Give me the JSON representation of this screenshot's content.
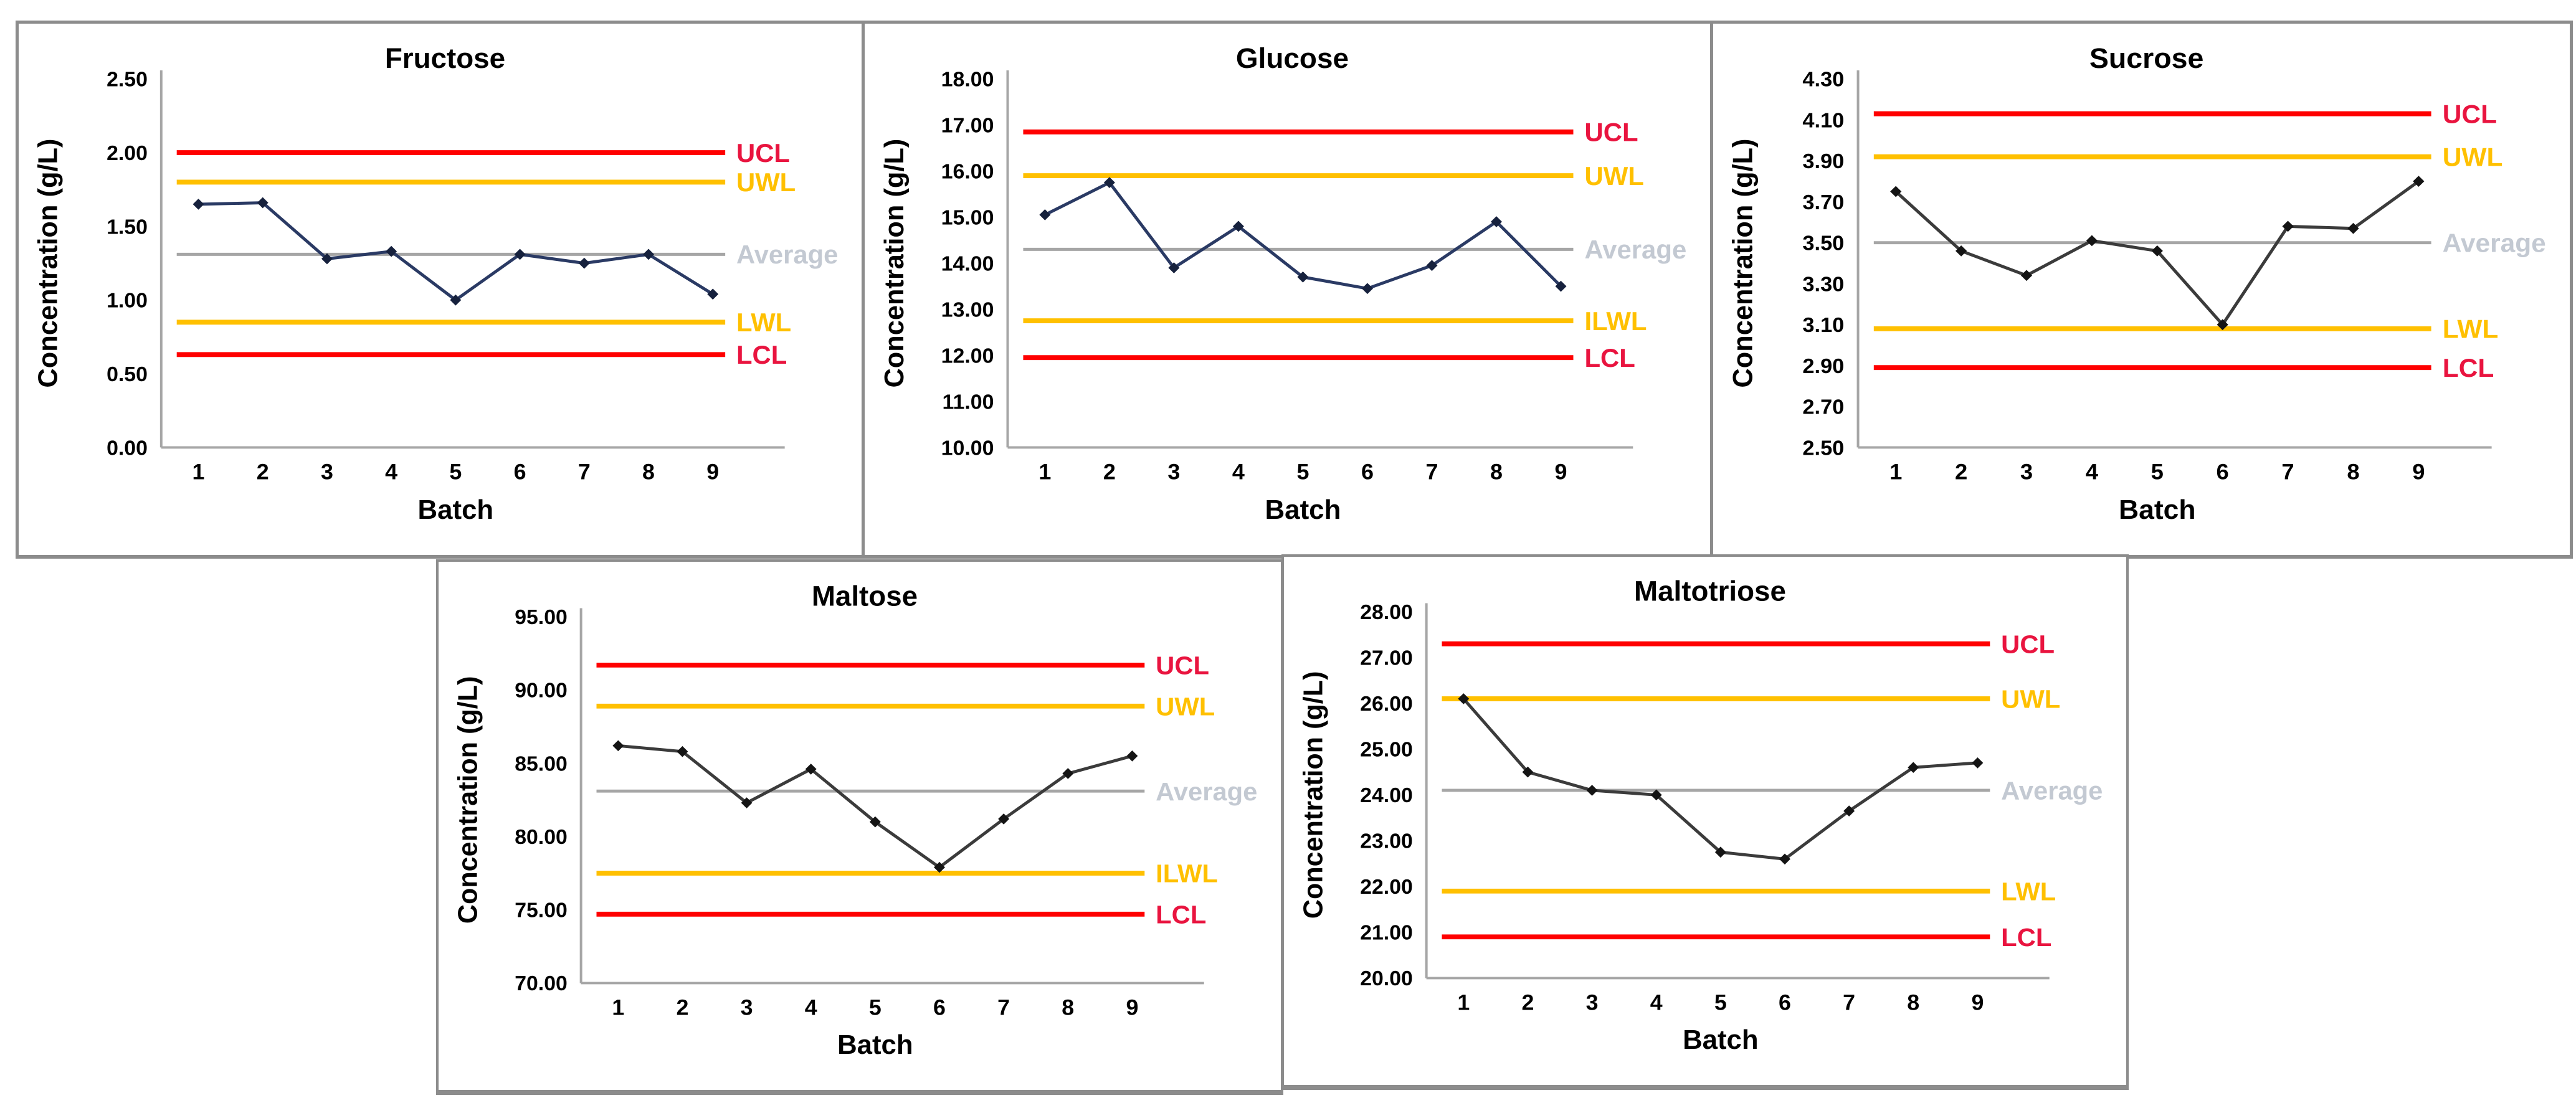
{
  "page": {
    "background": "#FFFFFF",
    "border_color": "#8C8C8C"
  },
  "colors": {
    "axis_line": "#A6A6A6",
    "tick_text": "#000000",
    "title_text": "#000000",
    "control_line": "#FF0000",
    "warning_line": "#FFC000",
    "average_line": "#A6A6A6",
    "control_label": "#E9143F",
    "warning_label": "#FFC000",
    "average_label": "#C3C9D2"
  },
  "chart_data": [
    {
      "id": "fructose",
      "type": "line",
      "title": "Fructose",
      "xlabel": "Batch",
      "ylabel": "Concentration (g/L)",
      "x_tick_labels": [
        "1",
        "2",
        "3",
        "4",
        "5",
        "6",
        "7",
        "8",
        "9"
      ],
      "y_tick_labels": [
        "2.50",
        "2.00",
        "1.50",
        "1.00",
        "0.50",
        "0.00"
      ],
      "ylim": [
        0.0,
        2.5
      ],
      "x": [
        1,
        2,
        3,
        4,
        5,
        6,
        7,
        8,
        9
      ],
      "values": [
        1.65,
        1.66,
        1.28,
        1.33,
        1.0,
        1.31,
        1.25,
        1.31,
        1.04
      ],
      "line_color": "#2A3A64",
      "marker_color": "#16213D",
      "legend_position": "right",
      "grid": false,
      "limits": [
        {
          "key": "ucl",
          "label": "UCL",
          "value": 2.0,
          "line_color": "#FF0000",
          "label_color": "#E9143F",
          "line_width": 8
        },
        {
          "key": "uwl",
          "label": "UWL",
          "value": 1.8,
          "line_color": "#FFC000",
          "label_color": "#FFC000",
          "line_width": 8
        },
        {
          "key": "average",
          "label": "Average",
          "value": 1.31,
          "line_color": "#A6A6A6",
          "label_color": "#C3C9D2",
          "line_width": 5
        },
        {
          "key": "lwl",
          "label": "LWL",
          "value": 0.85,
          "line_color": "#FFC000",
          "label_color": "#FFC000",
          "line_width": 8
        },
        {
          "key": "lcl",
          "label": "LCL",
          "value": 0.63,
          "line_color": "#FF0000",
          "label_color": "#E9143F",
          "line_width": 8
        }
      ]
    },
    {
      "id": "glucose",
      "type": "line",
      "title": "Glucose",
      "xlabel": "Batch",
      "ylabel": "Concentration (g/L)",
      "x_tick_labels": [
        "1",
        "2",
        "3",
        "4",
        "5",
        "6",
        "7",
        "8",
        "9"
      ],
      "y_tick_labels": [
        "18.00",
        "17.00",
        "16.00",
        "15.00",
        "14.00",
        "13.00",
        "12.00",
        "11.00",
        "10.00"
      ],
      "ylim": [
        10.0,
        18.0
      ],
      "x": [
        1,
        2,
        3,
        4,
        5,
        6,
        7,
        8,
        9
      ],
      "values": [
        15.05,
        15.75,
        13.9,
        14.8,
        13.7,
        13.45,
        13.95,
        14.9,
        13.5
      ],
      "line_color": "#2A3A64",
      "marker_color": "#16213D",
      "legend_position": "right",
      "grid": false,
      "limits": [
        {
          "key": "ucl",
          "label": "UCL",
          "value": 16.85,
          "line_color": "#FF0000",
          "label_color": "#E9143F",
          "line_width": 8
        },
        {
          "key": "uwl",
          "label": "UWL",
          "value": 15.9,
          "line_color": "#FFC000",
          "label_color": "#FFC000",
          "line_width": 8
        },
        {
          "key": "average",
          "label": "Average",
          "value": 14.3,
          "line_color": "#A6A6A6",
          "label_color": "#C3C9D2",
          "line_width": 5
        },
        {
          "key": "lwl",
          "label": "ILWL",
          "value": 12.75,
          "line_color": "#FFC000",
          "label_color": "#FFC000",
          "line_width": 8
        },
        {
          "key": "lcl",
          "label": "LCL",
          "value": 11.95,
          "line_color": "#FF0000",
          "label_color": "#E9143F",
          "line_width": 8
        }
      ]
    },
    {
      "id": "sucrose",
      "type": "line",
      "title": "Sucrose",
      "xlabel": "Batch",
      "ylabel": "Concentration (g/L)",
      "x_tick_labels": [
        "1",
        "2",
        "3",
        "4",
        "5",
        "6",
        "7",
        "8",
        "9"
      ],
      "y_tick_labels": [
        "4.30",
        "4.10",
        "3.90",
        "3.70",
        "3.50",
        "3.30",
        "3.10",
        "2.90",
        "2.70",
        "2.50"
      ],
      "ylim": [
        2.5,
        4.3
      ],
      "x": [
        1,
        2,
        3,
        4,
        5,
        6,
        7,
        8,
        9
      ],
      "values": [
        3.75,
        3.46,
        3.34,
        3.51,
        3.46,
        3.1,
        3.58,
        3.57,
        3.8
      ],
      "line_color": "#3B3B3B",
      "marker_color": "#141414",
      "legend_position": "right",
      "grid": false,
      "limits": [
        {
          "key": "ucl",
          "label": "UCL",
          "value": 4.13,
          "line_color": "#FF0000",
          "label_color": "#E9143F",
          "line_width": 8
        },
        {
          "key": "uwl",
          "label": "UWL",
          "value": 3.92,
          "line_color": "#FFC000",
          "label_color": "#FFC000",
          "line_width": 8
        },
        {
          "key": "average",
          "label": "Average",
          "value": 3.5,
          "line_color": "#A6A6A6",
          "label_color": "#C3C9D2",
          "line_width": 5
        },
        {
          "key": "lwl",
          "label": "LWL",
          "value": 3.08,
          "line_color": "#FFC000",
          "label_color": "#FFC000",
          "line_width": 8
        },
        {
          "key": "lcl",
          "label": "LCL",
          "value": 2.89,
          "line_color": "#FF0000",
          "label_color": "#E9143F",
          "line_width": 8
        }
      ]
    },
    {
      "id": "maltose",
      "type": "line",
      "title": "Maltose",
      "xlabel": "Batch",
      "ylabel": "Concentration (g/L)",
      "x_tick_labels": [
        "1",
        "2",
        "3",
        "4",
        "5",
        "6",
        "7",
        "8",
        "9"
      ],
      "y_tick_labels": [
        "95.00",
        "90.00",
        "85.00",
        "80.00",
        "75.00",
        "70.00"
      ],
      "ylim": [
        70.0,
        95.0
      ],
      "x": [
        1,
        2,
        3,
        4,
        5,
        6,
        7,
        8,
        9
      ],
      "values": [
        86.2,
        85.8,
        82.3,
        84.6,
        81.0,
        77.9,
        81.2,
        84.3,
        85.5
      ],
      "line_color": "#3B3B3B",
      "marker_color": "#141414",
      "legend_position": "right",
      "grid": false,
      "limits": [
        {
          "key": "ucl",
          "label": "UCL",
          "value": 91.7,
          "line_color": "#FF0000",
          "label_color": "#E9143F",
          "line_width": 8
        },
        {
          "key": "uwl",
          "label": "UWL",
          "value": 88.9,
          "line_color": "#FFC000",
          "label_color": "#FFC000",
          "line_width": 8
        },
        {
          "key": "average",
          "label": "Average",
          "value": 83.1,
          "line_color": "#A6A6A6",
          "label_color": "#C3C9D2",
          "line_width": 5
        },
        {
          "key": "lwl",
          "label": "ILWL",
          "value": 77.5,
          "line_color": "#FFC000",
          "label_color": "#FFC000",
          "line_width": 8
        },
        {
          "key": "lcl",
          "label": "LCL",
          "value": 74.7,
          "line_color": "#FF0000",
          "label_color": "#E9143F",
          "line_width": 8
        }
      ]
    },
    {
      "id": "maltotriose",
      "type": "line",
      "title": "Maltotriose",
      "xlabel": "Batch",
      "ylabel": "Concentration (g/L)",
      "x_tick_labels": [
        "1",
        "2",
        "3",
        "4",
        "5",
        "6",
        "7",
        "8",
        "9"
      ],
      "y_tick_labels": [
        "28.00",
        "27.00",
        "26.00",
        "25.00",
        "24.00",
        "23.00",
        "22.00",
        "21.00",
        "20.00"
      ],
      "ylim": [
        20.0,
        28.0
      ],
      "x": [
        1,
        2,
        3,
        4,
        5,
        6,
        7,
        8,
        9
      ],
      "values": [
        26.1,
        24.5,
        24.1,
        24.0,
        22.75,
        22.6,
        23.65,
        24.6,
        24.7
      ],
      "line_color": "#3B3B3B",
      "marker_color": "#141414",
      "legend_position": "right",
      "grid": false,
      "limits": [
        {
          "key": "ucl",
          "label": "UCL",
          "value": 27.3,
          "line_color": "#FF0000",
          "label_color": "#E9143F",
          "line_width": 8
        },
        {
          "key": "uwl",
          "label": "UWL",
          "value": 26.1,
          "line_color": "#FFC000",
          "label_color": "#FFC000",
          "line_width": 8
        },
        {
          "key": "average",
          "label": "Average",
          "value": 24.1,
          "line_color": "#A6A6A6",
          "label_color": "#C3C9D2",
          "line_width": 5
        },
        {
          "key": "lwl",
          "label": "LWL",
          "value": 21.9,
          "line_color": "#FFC000",
          "label_color": "#FFC000",
          "line_width": 8
        },
        {
          "key": "lcl",
          "label": "LCL",
          "value": 20.9,
          "line_color": "#FF0000",
          "label_color": "#E9143F",
          "line_width": 8
        }
      ]
    }
  ]
}
